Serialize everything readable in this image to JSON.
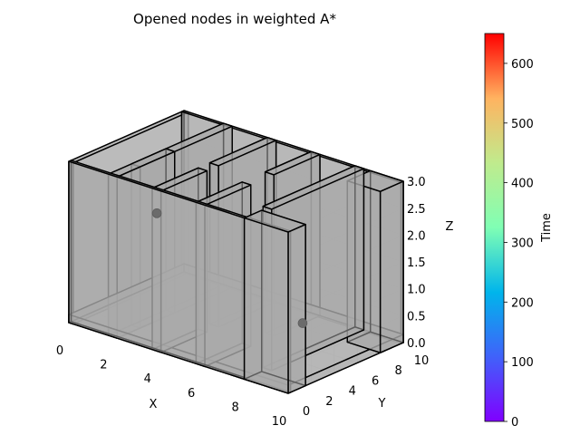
{
  "chart_data": {
    "type": "3d-voxel-obstacle-plot",
    "title": "Opened nodes in weighted A*",
    "xlabel": "X",
    "ylabel": "Y",
    "zlabel": "Z",
    "xlim": [
      0,
      10
    ],
    "ylim": [
      0,
      10
    ],
    "zlim": [
      0,
      3
    ],
    "x_ticks": [
      0,
      2,
      4,
      6,
      8,
      10
    ],
    "y_ticks": [
      0,
      2,
      4,
      6,
      8,
      10
    ],
    "z_ticks": [
      "0.0",
      "0.5",
      "1.0",
      "1.5",
      "2.0",
      "2.5",
      "3.0"
    ],
    "grid": true,
    "obstacle_color": "#a9a9a9",
    "obstacle_edge_color": "#000000",
    "obstacles": [
      {
        "x": [
          0,
          10
        ],
        "y": [
          0,
          10
        ],
        "z": [
          0,
          0.15
        ]
      },
      {
        "x": [
          0,
          0.2
        ],
        "y": [
          0,
          10
        ],
        "z": [
          0,
          3
        ]
      },
      {
        "x": [
          0,
          10
        ],
        "y": [
          9.8,
          10
        ],
        "z": [
          0,
          3
        ]
      },
      {
        "x": [
          0,
          10
        ],
        "y": [
          0,
          0.2
        ],
        "z": [
          0,
          3
        ]
      },
      {
        "x": [
          1.8,
          2.2
        ],
        "y": [
          2,
          10
        ],
        "z": [
          0,
          3
        ]
      },
      {
        "x": [
          1.8,
          2.2
        ],
        "y": [
          0,
          5
        ],
        "z": [
          0,
          3
        ]
      },
      {
        "x": [
          3.8,
          4.2
        ],
        "y": [
          5,
          10
        ],
        "z": [
          0,
          3
        ]
      },
      {
        "x": [
          3.8,
          4.2
        ],
        "y": [
          0,
          4
        ],
        "z": [
          0,
          3
        ]
      },
      {
        "x": [
          5.8,
          6.2
        ],
        "y": [
          0,
          4
        ],
        "z": [
          0,
          3
        ]
      },
      {
        "x": [
          5.8,
          6.2
        ],
        "y": [
          6,
          10
        ],
        "z": [
          0,
          3
        ]
      },
      {
        "x": [
          7.8,
          8.2
        ],
        "y": [
          2,
          10
        ],
        "z": [
          0,
          3
        ]
      },
      {
        "x": [
          8.5,
          10
        ],
        "y": [
          8,
          10
        ],
        "z": [
          0,
          3
        ]
      },
      {
        "x": [
          8,
          10
        ],
        "y": [
          0,
          1.5
        ],
        "z": [
          0,
          3
        ]
      }
    ],
    "nodes": [
      {
        "x": 0.6,
        "y": 6.5,
        "z": 1.5,
        "time": 0
      },
      {
        "x": 9.4,
        "y": 2.4,
        "z": 1.0,
        "time": 650
      }
    ],
    "colorbar": {
      "label": "Time",
      "colormap": "rainbow",
      "min": 0,
      "max": 650,
      "ticks": [
        0,
        100,
        200,
        300,
        400,
        500,
        600
      ]
    }
  }
}
